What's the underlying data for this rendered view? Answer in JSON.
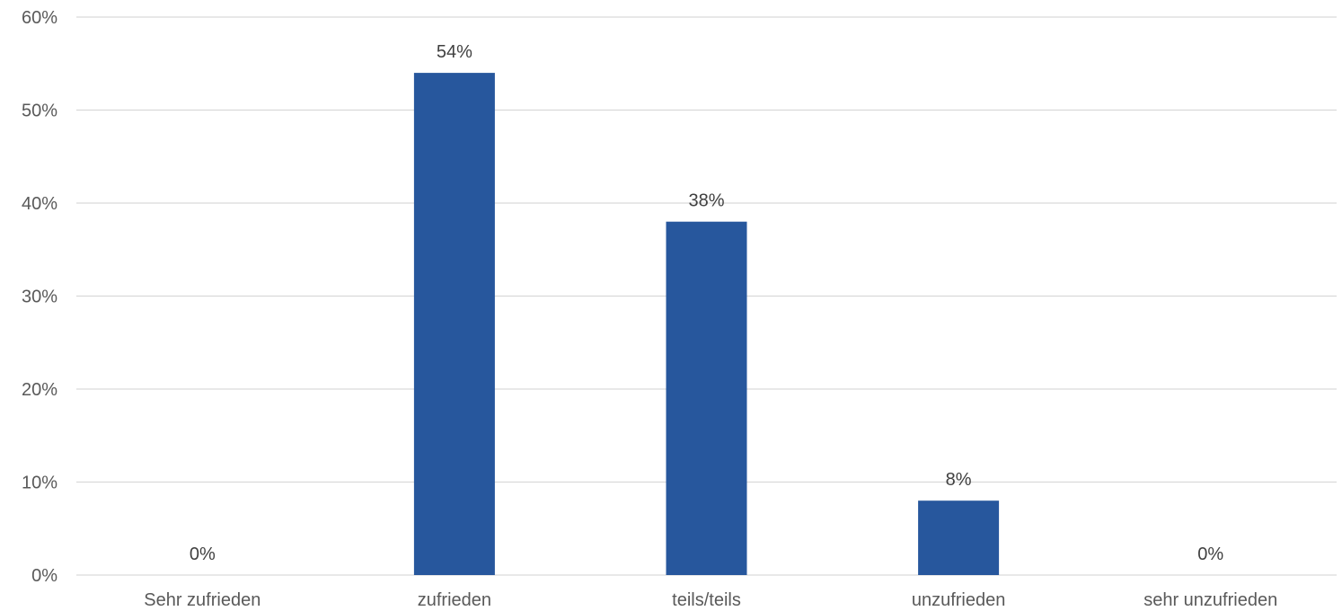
{
  "chart_data": {
    "type": "bar",
    "categories": [
      "Sehr zufrieden",
      "zufrieden",
      "teils/teils",
      "unzufrieden",
      "sehr unzufrieden"
    ],
    "values": [
      0,
      54,
      38,
      8,
      0
    ],
    "data_labels": [
      "0%",
      "54%",
      "38%",
      "8%",
      "0%"
    ],
    "yticks": [
      0,
      10,
      20,
      30,
      40,
      50,
      60
    ],
    "ytick_labels": [
      "0%",
      "10%",
      "20%",
      "30%",
      "40%",
      "50%",
      "60%"
    ],
    "ylim": [
      0,
      60
    ],
    "grid": true,
    "legend": "none",
    "bar_color": "#27579d",
    "title": "",
    "xlabel": "",
    "ylabel": ""
  }
}
